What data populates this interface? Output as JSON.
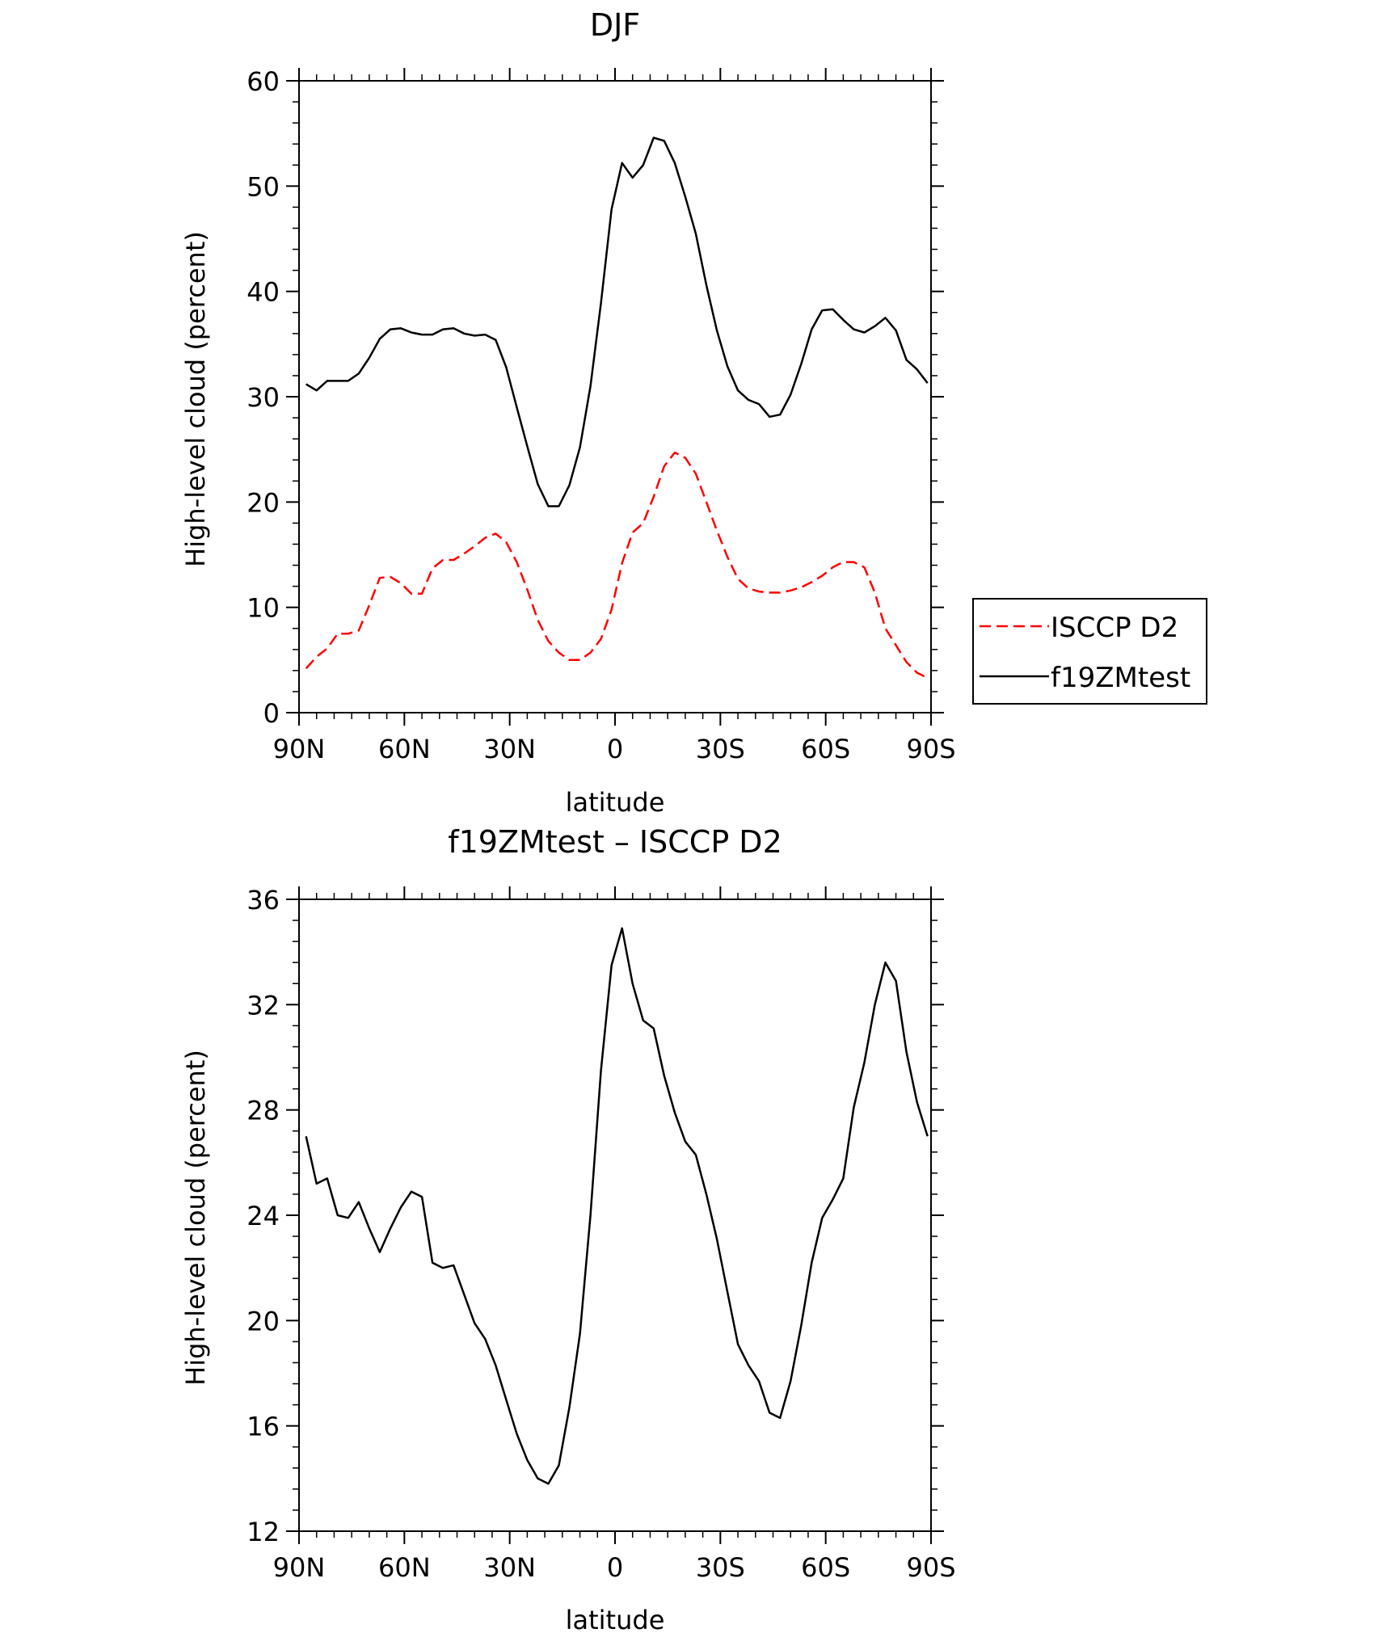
{
  "chart_data": [
    {
      "type": "line",
      "title": "DJF",
      "xlabel": "latitude",
      "ylabel": "High-level cloud (percent)",
      "xlim": [
        90,
        -90
      ],
      "ylim": [
        0,
        60
      ],
      "x_ticks": [
        90,
        60,
        30,
        0,
        -30,
        -60,
        -90
      ],
      "x_tick_labels": [
        "90N",
        "60N",
        "30N",
        "0",
        "30S",
        "60S",
        "90S"
      ],
      "y_ticks": [
        0,
        10,
        20,
        30,
        40,
        50,
        60
      ],
      "y_tick_labels": [
        "0",
        "10",
        "20",
        "30",
        "40",
        "50",
        "60"
      ],
      "legend": "right",
      "grid": false,
      "series": [
        {
          "name": "ISCCP D2",
          "color": "#ff0000",
          "dash": true,
          "points": [
            [
              88,
              4.2
            ],
            [
              85,
              5.3
            ],
            [
              82,
              6.1
            ],
            [
              79,
              7.5
            ],
            [
              76,
              7.5
            ],
            [
              73,
              7.8
            ],
            [
              70,
              10.2
            ],
            [
              67,
              12.8
            ],
            [
              64,
              12.9
            ],
            [
              61,
              12.3
            ],
            [
              58,
              11.3
            ],
            [
              55,
              11.3
            ],
            [
              52,
              13.7
            ],
            [
              49,
              14.5
            ],
            [
              46,
              14.5
            ],
            [
              43,
              15.1
            ],
            [
              40,
              15.8
            ],
            [
              37,
              16.6
            ],
            [
              34,
              17.0
            ],
            [
              31,
              16.2
            ],
            [
              28,
              14.3
            ],
            [
              25,
              11.7
            ],
            [
              22,
              8.8
            ],
            [
              19,
              6.8
            ],
            [
              16,
              5.7
            ],
            [
              13,
              5.0
            ],
            [
              10,
              5.0
            ],
            [
              7,
              5.7
            ],
            [
              4,
              7.0
            ],
            [
              1,
              9.8
            ],
            [
              -2,
              14.2
            ],
            [
              -5,
              17.1
            ],
            [
              -8,
              18.0
            ],
            [
              -11,
              20.5
            ],
            [
              -14,
              23.4
            ],
            [
              -17,
              24.7
            ],
            [
              -20,
              24.2
            ],
            [
              -23,
              22.7
            ],
            [
              -26,
              20.0
            ],
            [
              -29,
              17.3
            ],
            [
              -32,
              14.8
            ],
            [
              -35,
              12.7
            ],
            [
              -38,
              11.8
            ],
            [
              -41,
              11.5
            ],
            [
              -44,
              11.4
            ],
            [
              -47,
              11.4
            ],
            [
              -50,
              11.6
            ],
            [
              -53,
              11.9
            ],
            [
              -56,
              12.4
            ],
            [
              -59,
              13.0
            ],
            [
              -62,
              13.8
            ],
            [
              -65,
              14.3
            ],
            [
              -68,
              14.3
            ],
            [
              -71,
              13.8
            ],
            [
              -74,
              11.4
            ],
            [
              -77,
              8.0
            ],
            [
              -80,
              6.4
            ],
            [
              -83,
              4.8
            ],
            [
              -86,
              3.8
            ],
            [
              -89,
              3.3
            ]
          ]
        },
        {
          "name": "f19ZMtest",
          "color": "#000000",
          "dash": false,
          "points": [
            [
              88,
              31.2
            ],
            [
              85,
              30.6
            ],
            [
              82,
              31.5
            ],
            [
              79,
              31.5
            ],
            [
              76,
              31.5
            ],
            [
              73,
              32.2
            ],
            [
              70,
              33.7
            ],
            [
              67,
              35.5
            ],
            [
              64,
              36.4
            ],
            [
              61,
              36.5
            ],
            [
              58,
              36.1
            ],
            [
              55,
              35.9
            ],
            [
              52,
              35.9
            ],
            [
              49,
              36.4
            ],
            [
              46,
              36.5
            ],
            [
              43,
              36.0
            ],
            [
              40,
              35.8
            ],
            [
              37,
              35.9
            ],
            [
              34,
              35.4
            ],
            [
              31,
              32.8
            ],
            [
              28,
              29.0
            ],
            [
              25,
              25.3
            ],
            [
              22,
              21.7
            ],
            [
              19,
              19.6
            ],
            [
              16,
              19.6
            ],
            [
              13,
              21.6
            ],
            [
              10,
              25.2
            ],
            [
              7,
              31.0
            ],
            [
              4,
              38.9
            ],
            [
              1,
              47.8
            ],
            [
              -2,
              52.2
            ],
            [
              -5,
              50.8
            ],
            [
              -8,
              52.0
            ],
            [
              -11,
              54.6
            ],
            [
              -14,
              54.3
            ],
            [
              -17,
              52.2
            ],
            [
              -20,
              49.0
            ],
            [
              -23,
              45.5
            ],
            [
              -26,
              40.6
            ],
            [
              -29,
              36.3
            ],
            [
              -32,
              32.9
            ],
            [
              -35,
              30.6
            ],
            [
              -38,
              29.7
            ],
            [
              -41,
              29.3
            ],
            [
              -44,
              28.1
            ],
            [
              -47,
              28.3
            ],
            [
              -50,
              30.2
            ],
            [
              -53,
              33.1
            ],
            [
              -56,
              36.4
            ],
            [
              -59,
              38.2
            ],
            [
              -62,
              38.3
            ],
            [
              -65,
              37.3
            ],
            [
              -68,
              36.4
            ],
            [
              -71,
              36.1
            ],
            [
              -74,
              36.7
            ],
            [
              -77,
              37.5
            ],
            [
              -80,
              36.3
            ],
            [
              -83,
              33.5
            ],
            [
              -86,
              32.6
            ],
            [
              -89,
              31.3
            ]
          ]
        }
      ]
    },
    {
      "type": "line",
      "title": "f19ZMtest – ISCCP D2",
      "xlabel": "latitude",
      "ylabel": "High-level cloud (percent)",
      "xlim": [
        90,
        -90
      ],
      "ylim": [
        12,
        36
      ],
      "x_ticks": [
        90,
        60,
        30,
        0,
        -30,
        -60,
        -90
      ],
      "x_tick_labels": [
        "90N",
        "60N",
        "30N",
        "0",
        "30S",
        "60S",
        "90S"
      ],
      "y_ticks": [
        12,
        16,
        20,
        24,
        28,
        32,
        36
      ],
      "y_tick_labels": [
        "12",
        "16",
        "20",
        "24",
        "28",
        "32",
        "36"
      ],
      "grid": false,
      "series": [
        {
          "color": "#000000",
          "dash": false,
          "points": [
            [
              88,
              27.0
            ],
            [
              85,
              25.2
            ],
            [
              82,
              25.4
            ],
            [
              79,
              24.0
            ],
            [
              76,
              23.9
            ],
            [
              73,
              24.5
            ],
            [
              70,
              23.5
            ],
            [
              67,
              22.6
            ],
            [
              64,
              23.5
            ],
            [
              61,
              24.3
            ],
            [
              58,
              24.9
            ],
            [
              55,
              24.7
            ],
            [
              52,
              22.2
            ],
            [
              49,
              22.0
            ],
            [
              46,
              22.1
            ],
            [
              43,
              21.0
            ],
            [
              40,
              19.9
            ],
            [
              37,
              19.3
            ],
            [
              34,
              18.3
            ],
            [
              31,
              17.0
            ],
            [
              28,
              15.7
            ],
            [
              25,
              14.7
            ],
            [
              22,
              14.0
            ],
            [
              19,
              13.8
            ],
            [
              16,
              14.5
            ],
            [
              13,
              16.7
            ],
            [
              10,
              19.5
            ],
            [
              7,
              24.0
            ],
            [
              4,
              29.5
            ],
            [
              1,
              33.5
            ],
            [
              -2,
              34.9
            ],
            [
              -5,
              32.8
            ],
            [
              -8,
              31.4
            ],
            [
              -11,
              31.1
            ],
            [
              -14,
              29.3
            ],
            [
              -17,
              27.9
            ],
            [
              -20,
              26.8
            ],
            [
              -23,
              26.3
            ],
            [
              -26,
              24.8
            ],
            [
              -29,
              23.1
            ],
            [
              -32,
              21.1
            ],
            [
              -35,
              19.1
            ],
            [
              -38,
              18.3
            ],
            [
              -41,
              17.7
            ],
            [
              -44,
              16.5
            ],
            [
              -47,
              16.3
            ],
            [
              -50,
              17.7
            ],
            [
              -53,
              19.8
            ],
            [
              -56,
              22.2
            ],
            [
              -59,
              23.9
            ],
            [
              -62,
              24.6
            ],
            [
              -65,
              25.4
            ],
            [
              -68,
              28.1
            ],
            [
              -71,
              29.8
            ],
            [
              -74,
              32.0
            ],
            [
              -77,
              33.6
            ],
            [
              -80,
              32.9
            ],
            [
              -83,
              30.2
            ],
            [
              -86,
              28.3
            ],
            [
              -89,
              27.0
            ]
          ]
        }
      ]
    }
  ]
}
